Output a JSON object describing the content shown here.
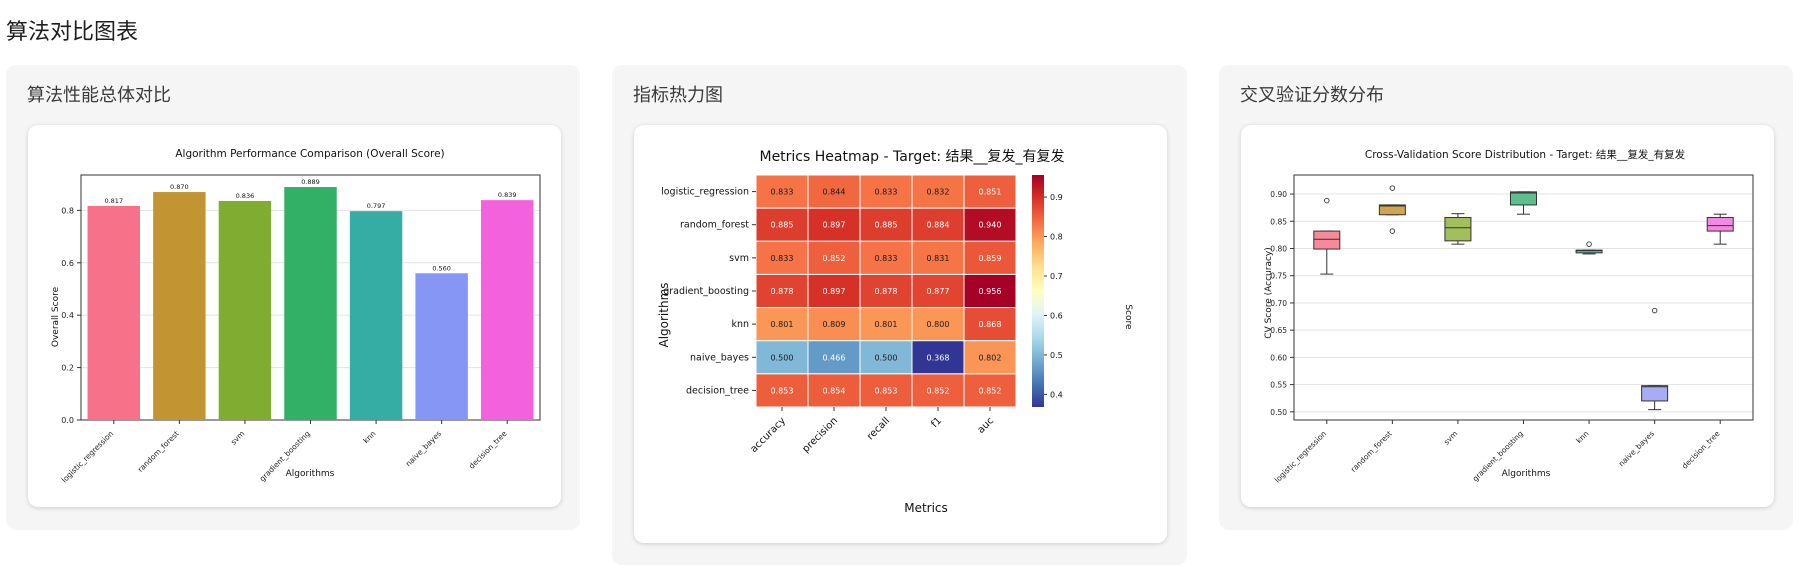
{
  "page": {
    "title": "算法对比图表"
  },
  "panels": {
    "performance": {
      "title": "算法性能总体对比"
    },
    "heatmap": {
      "title": "指标热力图"
    },
    "cv": {
      "title": "交叉验证分数分布"
    }
  },
  "chart_data": [
    {
      "type": "bar",
      "title": "Algorithm Performance Comparison (Overall Score)",
      "xlabel": "Algorithms",
      "ylabel": "Overall Score",
      "ylim": [
        0,
        0.935
      ],
      "yticks": [
        "0.0",
        "0.2",
        "0.4",
        "0.6",
        "0.8"
      ],
      "grid": "horizontal",
      "categories": [
        "logistic_regression",
        "random_forest",
        "svm",
        "gradient_boosting",
        "knn",
        "naive_bayes",
        "decision_tree"
      ],
      "values": [
        0.817,
        0.87,
        0.836,
        0.889,
        0.797,
        0.56,
        0.839
      ],
      "value_labels": [
        "0.817",
        "0.870",
        "0.836",
        "0.889",
        "0.797",
        "0.560",
        "0.839"
      ],
      "colors": [
        "#f77189",
        "#c39532",
        "#80ac32",
        "#32b166",
        "#36ada4",
        "#8596f4",
        "#f461dd"
      ]
    },
    {
      "type": "heatmap",
      "title": "Metrics Heatmap - Target: 结果__复发_有复发",
      "xlabel": "Metrics",
      "ylabel": "Algorithms",
      "rows": [
        "logistic_regression",
        "random_forest",
        "svm",
        "gradient_boosting",
        "knn",
        "naive_bayes",
        "decision_tree"
      ],
      "columns": [
        "accuracy",
        "precision",
        "recall",
        "f1",
        "auc"
      ],
      "values": [
        [
          0.833,
          0.844,
          0.833,
          0.832,
          0.851
        ],
        [
          0.885,
          0.897,
          0.885,
          0.884,
          0.94
        ],
        [
          0.833,
          0.852,
          0.833,
          0.831,
          0.859
        ],
        [
          0.878,
          0.897,
          0.878,
          0.877,
          0.956
        ],
        [
          0.801,
          0.809,
          0.801,
          0.8,
          0.868
        ],
        [
          0.5,
          0.466,
          0.5,
          0.368,
          0.802
        ],
        [
          0.853,
          0.854,
          0.853,
          0.852,
          0.852
        ]
      ],
      "cell_labels": [
        [
          "0.833",
          "0.844",
          "0.833",
          "0.832",
          "0.851"
        ],
        [
          "0.885",
          "0.897",
          "0.885",
          "0.884",
          "0.940"
        ],
        [
          "0.833",
          "0.852",
          "0.833",
          "0.831",
          "0.859"
        ],
        [
          "0.878",
          "0.897",
          "0.878",
          "0.877",
          "0.956"
        ],
        [
          "0.801",
          "0.809",
          "0.801",
          "0.800",
          "0.868"
        ],
        [
          "0.500",
          "0.466",
          "0.500",
          "0.368",
          "0.802"
        ],
        [
          "0.853",
          "0.854",
          "0.853",
          "0.852",
          "0.852"
        ]
      ],
      "colorbar": {
        "label": "Score",
        "range": [
          0.368,
          0.956
        ],
        "ticks": [
          "0.4",
          "0.5",
          "0.6",
          "0.7",
          "0.8",
          "0.9"
        ],
        "colormap": "RdYlBu_r"
      }
    },
    {
      "type": "box",
      "title": "Cross-Validation Score Distribution - Target: 结果__复发_有复发",
      "xlabel": "Algorithms",
      "ylabel": "CV Score (Accuracy)",
      "ylim": [
        0.485,
        0.935
      ],
      "yticks": [
        "0.50",
        "0.55",
        "0.60",
        "0.65",
        "0.70",
        "0.75",
        "0.80",
        "0.85",
        "0.90"
      ],
      "grid": "horizontal",
      "categories": [
        "logistic_regression",
        "random_forest",
        "svm",
        "gradient_boosting",
        "knn",
        "naive_bayes",
        "decision_tree"
      ],
      "boxes": [
        {
          "min": 0.753,
          "q1": 0.799,
          "median": 0.817,
          "q3": 0.832,
          "max": 0.832,
          "outliers": [
            0.888
          ]
        },
        {
          "min": 0.862,
          "q1": 0.862,
          "median": 0.878,
          "q3": 0.88,
          "max": 0.88,
          "outliers": [
            0.911,
            0.832
          ]
        },
        {
          "min": 0.808,
          "q1": 0.814,
          "median": 0.838,
          "q3": 0.857,
          "max": 0.864,
          "outliers": []
        },
        {
          "min": 0.863,
          "q1": 0.88,
          "median": 0.902,
          "q3": 0.904,
          "max": 0.904,
          "outliers": []
        },
        {
          "min": 0.79,
          "q1": 0.792,
          "median": 0.796,
          "q3": 0.797,
          "max": 0.797,
          "outliers": [
            0.808
          ]
        },
        {
          "min": 0.504,
          "q1": 0.52,
          "median": 0.546,
          "q3": 0.548,
          "max": 0.548,
          "outliers": [
            0.686
          ]
        },
        {
          "min": 0.808,
          "q1": 0.832,
          "median": 0.842,
          "q3": 0.857,
          "max": 0.863,
          "outliers": []
        }
      ],
      "colors": [
        "#f7899b",
        "#d1a451",
        "#a2bf5e",
        "#5cbf8c",
        "#5fbcb6",
        "#a6adf5",
        "#f28ae4"
      ]
    }
  ]
}
